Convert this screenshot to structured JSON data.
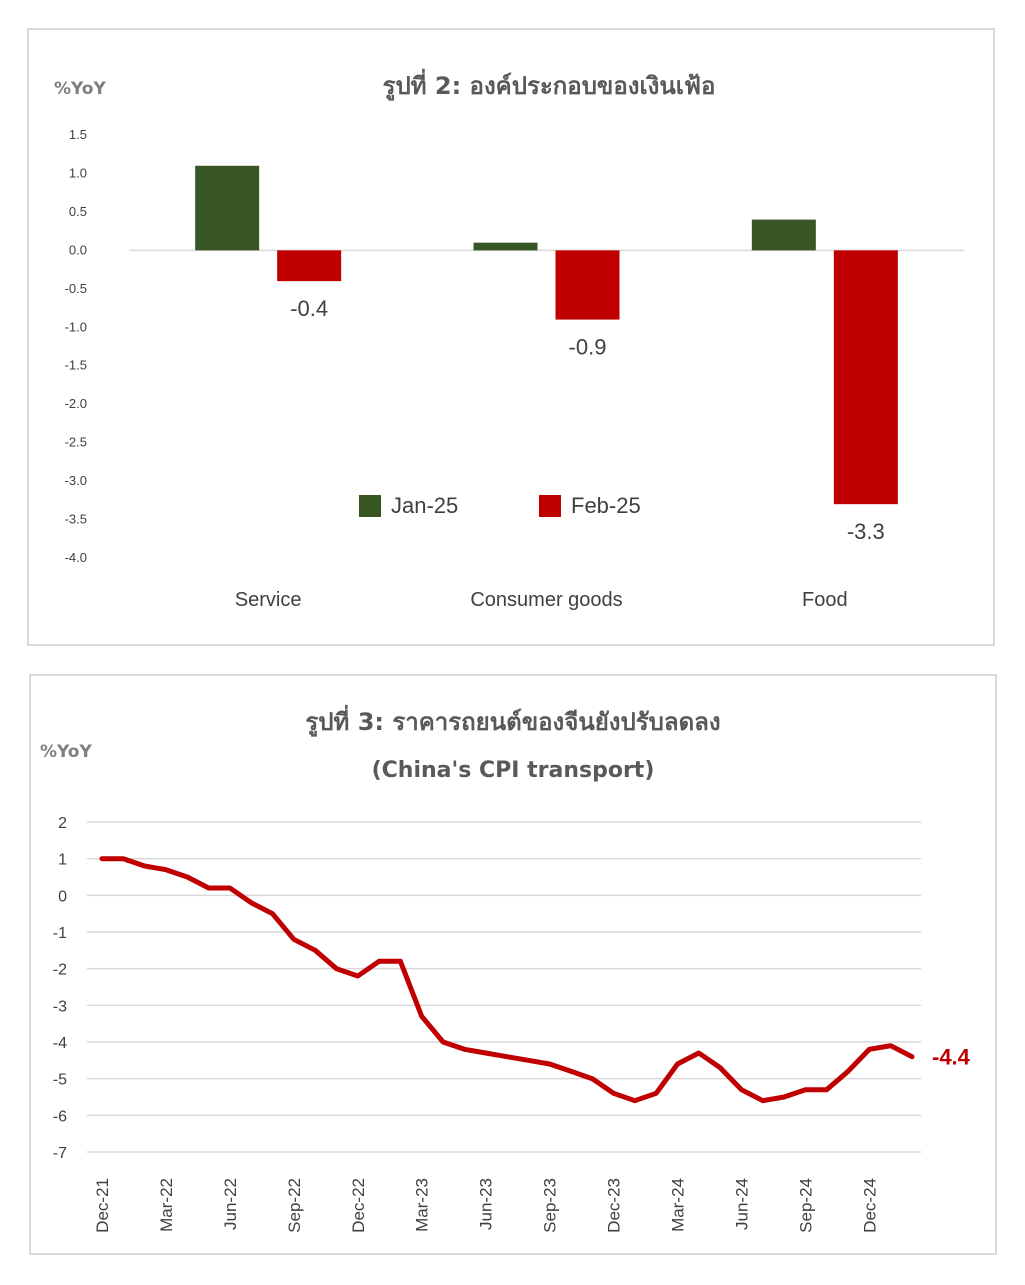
{
  "chart_data": [
    {
      "type": "bar",
      "title": "รูปที่ 2: องค์ประกอบของเงินเฟ้อ",
      "ylabel": "%YoY",
      "ylim": [
        -4.0,
        1.5
      ],
      "yticks": [
        "1.5",
        "1.0",
        "0.5",
        "0.0",
        "-0.5",
        "-1.0",
        "-1.5",
        "-2.0",
        "-2.5",
        "-3.0",
        "-3.5",
        "-4.0"
      ],
      "categories": [
        "Service",
        "Consumer goods",
        "Food"
      ],
      "legend_position": "bottom-center",
      "grid": false,
      "series": [
        {
          "name": "Jan-25",
          "color": "#375623",
          "values": [
            1.1,
            0.1,
            0.4
          ],
          "labels": [
            "",
            "",
            ""
          ]
        },
        {
          "name": "Feb-25",
          "color": "#c00000",
          "values": [
            -0.4,
            -0.9,
            -3.3
          ],
          "labels": [
            "-0.4",
            "-0.9",
            "-3.3"
          ]
        }
      ]
    },
    {
      "type": "line",
      "title": "รูปที่ 3: ราคารถยนต์ของจีนยังปรับลดลง",
      "subtitle": "(China's CPI transport)",
      "ylabel": "%YoY",
      "ylim": [
        -7,
        2
      ],
      "yticks": [
        "2",
        "1",
        "0",
        "-1",
        "-2",
        "-3",
        "-4",
        "-5",
        "-6",
        "-7"
      ],
      "grid": true,
      "x_tick_labels": [
        "Dec-21",
        "Mar-22",
        "Jun-22",
        "Sep-22",
        "Dec-22",
        "Mar-23",
        "Jun-23",
        "Sep-23",
        "Dec-23",
        "Mar-24",
        "Jun-24",
        "Sep-24",
        "Dec-24"
      ],
      "x": [
        "Dec-21",
        "Jan-22",
        "Feb-22",
        "Mar-22",
        "Apr-22",
        "May-22",
        "Jun-22",
        "Jul-22",
        "Aug-22",
        "Sep-22",
        "Oct-22",
        "Nov-22",
        "Dec-22",
        "Jan-23",
        "Feb-23",
        "Mar-23",
        "Apr-23",
        "May-23",
        "Jun-23",
        "Jul-23",
        "Aug-23",
        "Sep-23",
        "Oct-23",
        "Nov-23",
        "Dec-23",
        "Jan-24",
        "Feb-24",
        "Mar-24",
        "Apr-24",
        "May-24",
        "Jun-24",
        "Jul-24",
        "Aug-24",
        "Sep-24",
        "Oct-24",
        "Nov-24",
        "Dec-24",
        "Jan-25",
        "Feb-25"
      ],
      "series": [
        {
          "color": "#c00000",
          "values": [
            1.0,
            1.0,
            0.8,
            0.7,
            0.5,
            0.2,
            0.2,
            -0.2,
            -0.5,
            -1.2,
            -1.5,
            -2.0,
            -2.2,
            -1.8,
            -1.8,
            -3.3,
            -4.0,
            -4.2,
            -4.3,
            -4.4,
            -4.5,
            -4.6,
            -4.8,
            -5.0,
            -5.4,
            -5.6,
            -5.4,
            -4.6,
            -4.3,
            -4.7,
            -5.3,
            -5.6,
            -5.5,
            -5.3,
            -5.3,
            -4.8,
            -4.2,
            -4.1,
            -4.4
          ]
        }
      ],
      "end_label": "-4.4"
    }
  ]
}
